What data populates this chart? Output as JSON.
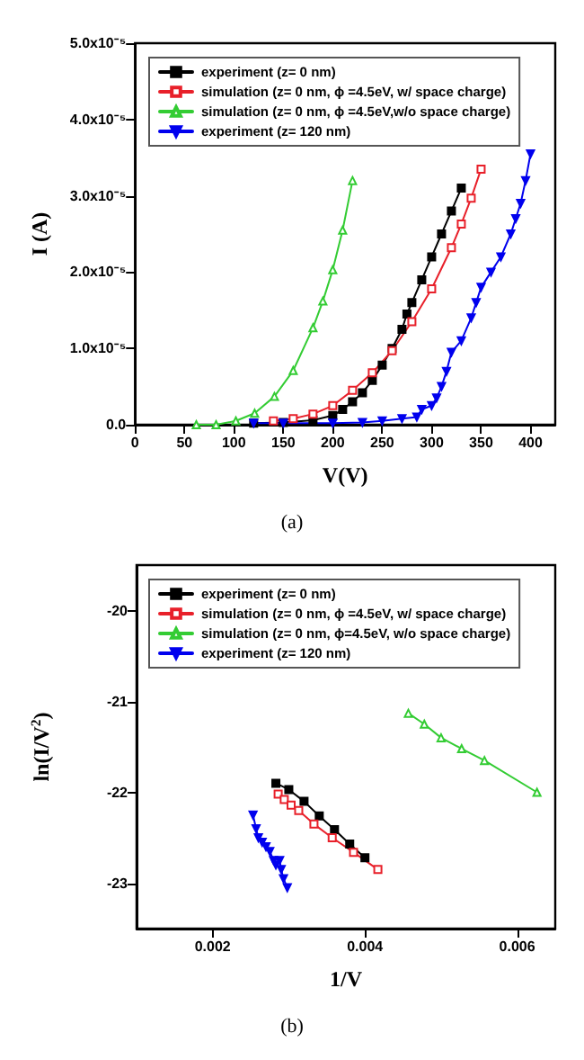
{
  "chart_data": [
    {
      "type": "line",
      "xlabel": "V(V)",
      "ylabel": "I (A)",
      "annotations": [
        "(a)"
      ],
      "xlim": [
        0,
        425
      ],
      "xticks": [
        0,
        50,
        100,
        150,
        200,
        250,
        300,
        350,
        400
      ],
      "ylim": [
        0,
        5e-05
      ],
      "yticks": [
        {
          "value": 0,
          "label": "0.0"
        },
        {
          "value": 1e-05,
          "label": "1.0x10⁻⁵"
        },
        {
          "value": 2e-05,
          "label": "2.0x10⁻⁵"
        },
        {
          "value": 3e-05,
          "label": "3.0x10⁻⁵"
        },
        {
          "value": 4e-05,
          "label": "4.0x10⁻⁵"
        },
        {
          "value": 5e-05,
          "label": "5.0x10⁻⁵"
        }
      ],
      "grid": false,
      "legend": "top left",
      "series": [
        {
          "name": "experiment (z= 0 nm)",
          "color": "#000000",
          "marker": "square",
          "x": [
            120,
            150,
            180,
            200,
            210,
            220,
            230,
            240,
            250,
            260,
            270,
            275,
            280,
            290,
            300,
            310,
            320,
            330
          ],
          "values": [
            2e-07,
            3e-07,
            6e-07,
            1.2e-06,
            2e-06,
            3e-06,
            4.2e-06,
            5.8e-06,
            7.8e-06,
            1e-05,
            1.25e-05,
            1.45e-05,
            1.6e-05,
            1.9e-05,
            2.2e-05,
            2.5e-05,
            2.8e-05,
            3.1e-05
          ]
        },
        {
          "name": "simulation (z= 0 nm, ϕ =4.5eV, w/ space charge)",
          "color": "#e8202a",
          "marker": "square-open",
          "x": [
            140,
            160,
            180,
            200,
            220,
            240,
            260,
            280,
            300,
            320,
            330,
            340,
            350
          ],
          "values": [
            5e-07,
            8e-07,
            1.4e-06,
            2.5e-06,
            4.5e-06,
            6.8e-06,
            9.7e-06,
            1.35e-05,
            1.78e-05,
            2.32e-05,
            2.63e-05,
            2.97e-05,
            3.35e-05
          ]
        },
        {
          "name": "simulation (z= 0 nm, ϕ =4.5eV,w/o space charge)",
          "color": "#33cc33",
          "marker": "triangle-open",
          "x": [
            62,
            82,
            102,
            121,
            141,
            160,
            180,
            190,
            200,
            210,
            220
          ],
          "values": [
            0,
            0,
            5e-07,
            1.5e-06,
            3.7e-06,
            7.1e-06,
            1.27e-05,
            1.62e-05,
            2.03e-05,
            2.55e-05,
            3.2e-05
          ]
        },
        {
          "name": "experiment (z= 120 nm)",
          "color": "#0000ee",
          "marker": "triangle-down",
          "x": [
            120,
            150,
            200,
            230,
            250,
            270,
            285,
            290,
            300,
            305,
            310,
            315,
            320,
            330,
            340,
            345,
            350,
            360,
            370,
            380,
            385,
            390,
            395,
            400
          ],
          "values": [
            2e-07,
            2e-07,
            2e-07,
            3e-07,
            5e-07,
            8e-07,
            1e-06,
            2e-06,
            2.5e-06,
            3.5e-06,
            5e-06,
            7e-06,
            9.5e-06,
            1.1e-05,
            1.4e-05,
            1.6e-05,
            1.8e-05,
            2e-05,
            2.2e-05,
            2.5e-05,
            2.7e-05,
            2.9e-05,
            3.2e-05,
            3.55e-05
          ]
        }
      ]
    },
    {
      "type": "line",
      "xlabel": "1/V",
      "ylabel": "ln(I/V$^{2}$)",
      "annotations": [
        "(b)"
      ],
      "xlim": [
        0.001,
        0.0065
      ],
      "xticks": [
        0.002,
        0.004,
        0.006
      ],
      "ylim": [
        -23.5,
        -19.5
      ],
      "yticks": [
        -23,
        -22,
        -21,
        -20
      ],
      "grid": false,
      "legend": "top left",
      "series": [
        {
          "name": "experiment (z= 0 nm)",
          "color": "#000000",
          "marker": "square",
          "x": [
            0.00283,
            0.003,
            0.0032,
            0.0034,
            0.0036,
            0.0038,
            0.004
          ],
          "values": [
            -21.9,
            -21.97,
            -22.1,
            -22.26,
            -22.41,
            -22.57,
            -22.72
          ]
        },
        {
          "name": "simulation (z= 0 nm, ϕ =4.5eV, w/ space charge)",
          "color": "#e8202a",
          "marker": "square-open",
          "x": [
            0.00286,
            0.00294,
            0.00303,
            0.00313,
            0.00333,
            0.00357,
            0.00385,
            0.00417
          ],
          "values": [
            -22.02,
            -22.08,
            -22.14,
            -22.2,
            -22.35,
            -22.5,
            -22.66,
            -22.85
          ]
        },
        {
          "name": "simulation (z= 0 nm, ϕ=4.5eV, w/o space charge)",
          "color": "#33cc33",
          "marker": "triangle-open",
          "x": [
            0.00457,
            0.00478,
            0.005,
            0.00527,
            0.00557,
            0.00626
          ],
          "values": [
            -21.13,
            -21.25,
            -21.4,
            -21.52,
            -21.65,
            -22.0
          ]
        },
        {
          "name": "experiment (z= 120 nm)",
          "color": "#0000ee",
          "marker": "triangle-down",
          "x": [
            0.00253,
            0.00257,
            0.0026,
            0.00265,
            0.0027,
            0.00275,
            0.0028,
            0.00283,
            0.00288,
            0.0029,
            0.00293,
            0.00298
          ],
          "values": [
            -22.25,
            -22.4,
            -22.5,
            -22.55,
            -22.6,
            -22.65,
            -22.75,
            -22.8,
            -22.75,
            -22.85,
            -22.95,
            -23.05
          ]
        }
      ]
    }
  ]
}
